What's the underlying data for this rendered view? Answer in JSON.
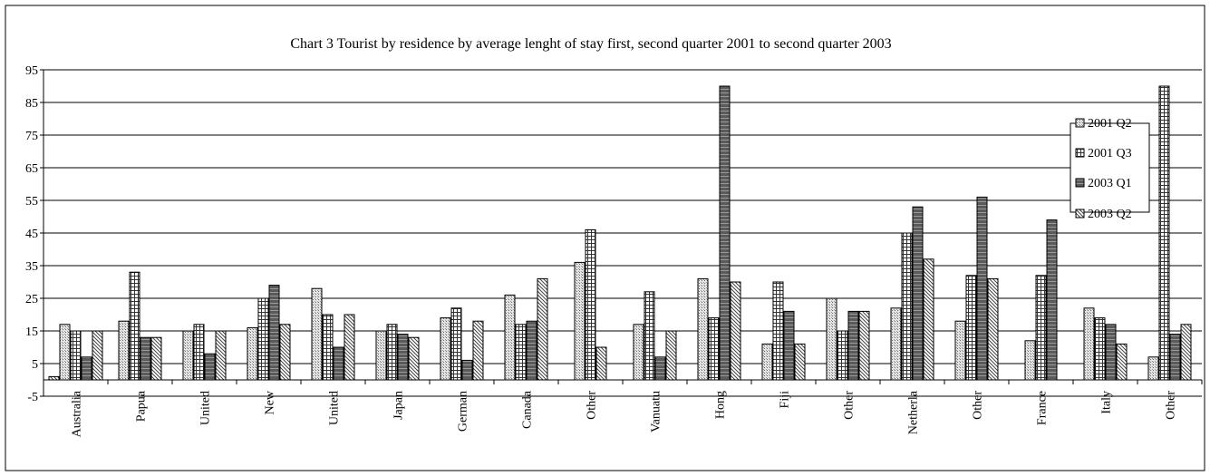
{
  "chart_data": {
    "type": "bar",
    "title": "Chart 3 Tourist by residence by average lenght of stay first, second quarter 2001 to second quarter 2003",
    "xlabel": "",
    "ylabel": "",
    "ylim": [
      -5,
      95
    ],
    "yticks": [
      95,
      85,
      75,
      65,
      55,
      45,
      35,
      25,
      15,
      5,
      -5
    ],
    "grid": true,
    "legend_position": "right",
    "categories": [
      "Australia",
      "Papua",
      "United",
      "New",
      "United",
      "Japan",
      "German",
      "Canada",
      "Other",
      "Vanuatu",
      "Hong",
      "Fiji",
      "Other",
      "Netherla",
      "Other",
      "France",
      "Italy",
      "Other"
    ],
    "series": [
      {
        "name": "2001 Q2",
        "pattern": "light",
        "values": [
          1,
          18,
          15,
          16,
          28,
          15,
          19,
          26,
          36,
          17,
          31,
          11,
          25,
          22,
          18,
          12,
          22,
          7
        ]
      },
      {
        "name": "2001 Q3",
        "pattern": "grid",
        "values": [
          17,
          33,
          17,
          25,
          20,
          17,
          22,
          17,
          46,
          27,
          19,
          30,
          15,
          45,
          32,
          32,
          19,
          90
        ]
      },
      {
        "name": "2003 Q1",
        "pattern": "dark",
        "values": [
          15,
          13,
          8,
          29,
          10,
          14,
          6,
          18,
          0,
          7,
          90,
          21,
          21,
          53,
          56,
          49,
          17,
          14
        ]
      },
      {
        "name": "2003 Q2",
        "pattern": "diag",
        "values": [
          7,
          13,
          15,
          17,
          20,
          13,
          18,
          31,
          10,
          15,
          30,
          11,
          21,
          37,
          31,
          0,
          11,
          17
        ]
      }
    ],
    "series_display": [
      [
        1,
        17,
        15,
        7,
        15
      ],
      [
        18,
        33,
        13,
        13
      ],
      [
        15,
        17,
        8,
        15
      ],
      [
        16,
        25,
        29,
        17
      ],
      [
        28,
        20,
        10,
        20
      ],
      [
        15,
        17,
        14,
        13
      ],
      [
        19,
        22,
        6,
        18
      ],
      [
        26,
        17,
        18,
        31
      ],
      [
        36,
        46,
        10
      ],
      [
        17,
        27,
        7,
        15
      ],
      [
        31,
        19,
        90,
        30
      ],
      [
        11,
        30,
        21,
        11
      ],
      [
        25,
        15,
        21,
        21
      ],
      [
        22,
        45,
        53,
        37
      ],
      [
        18,
        32,
        56,
        31
      ],
      [
        12,
        32,
        49
      ],
      [
        22,
        19,
        17,
        11
      ],
      [
        7,
        90,
        14,
        17
      ]
    ],
    "bar_patterns": [
      [
        "diag",
        "light",
        "grid",
        "dark",
        "diag"
      ],
      [
        "light",
        "grid",
        "dark",
        "diag"
      ],
      [
        "light",
        "grid",
        "dark",
        "diag"
      ],
      [
        "light",
        "grid",
        "dark",
        "diag"
      ],
      [
        "light",
        "grid",
        "dark",
        "diag"
      ],
      [
        "light",
        "grid",
        "dark",
        "diag"
      ],
      [
        "light",
        "grid",
        "dark",
        "diag"
      ],
      [
        "light",
        "grid",
        "dark",
        "diag"
      ],
      [
        "light",
        "grid",
        "diag"
      ],
      [
        "light",
        "grid",
        "dark",
        "diag"
      ],
      [
        "light",
        "grid",
        "dark",
        "diag"
      ],
      [
        "light",
        "grid",
        "dark",
        "diag"
      ],
      [
        "light",
        "grid",
        "dark",
        "diag"
      ],
      [
        "light",
        "grid",
        "dark",
        "diag"
      ],
      [
        "light",
        "grid",
        "dark",
        "diag"
      ],
      [
        "light",
        "grid",
        "dark"
      ],
      [
        "light",
        "grid",
        "dark",
        "diag"
      ],
      [
        "light",
        "grid",
        "dark",
        "diag"
      ]
    ],
    "colors": {
      "light": "#c8c8c8",
      "grid": "#e8e8e8",
      "dark": "#707070",
      "diag": "#d0d0d0",
      "axis": "#000000"
    }
  }
}
